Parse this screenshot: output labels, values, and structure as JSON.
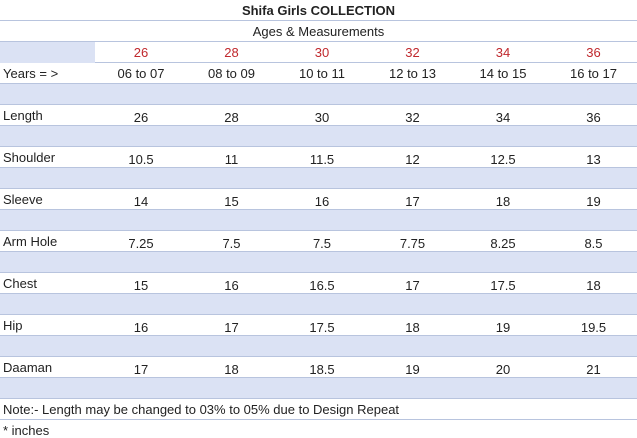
{
  "header": {
    "title": "Shifa Girls COLLECTION",
    "subtitle": "Ages & Measurements"
  },
  "table": {
    "sizes": [
      26,
      28,
      30,
      32,
      34,
      36
    ],
    "rows": [
      {
        "label": "Years = >",
        "cells": [
          "06 to 07",
          "08 to 09",
          "10 to 11",
          "12 to 13",
          "14 to 15",
          "16 to 17"
        ]
      },
      {
        "label": "Length",
        "cells": [
          26,
          28,
          30,
          32,
          34,
          36
        ]
      },
      {
        "label": "Shoulder",
        "cells": [
          10.5,
          11,
          11.5,
          12,
          12.5,
          13
        ]
      },
      {
        "label": "Sleeve",
        "cells": [
          14,
          15,
          16,
          17,
          18,
          19
        ]
      },
      {
        "label": "Arm Hole",
        "cells": [
          7.25,
          7.5,
          7.5,
          7.75,
          8.25,
          8.5
        ]
      },
      {
        "label": "Chest",
        "cells": [
          15,
          16,
          16.5,
          17,
          17.5,
          18
        ]
      },
      {
        "label": "Hip",
        "cells": [
          16,
          17,
          17.5,
          18,
          19,
          19.5
        ]
      },
      {
        "label": "Daaman",
        "cells": [
          17,
          18,
          18.5,
          19,
          20,
          21
        ]
      }
    ]
  },
  "footer": {
    "note": "Note:- Length may be changed to 03% to 05% due to Design Repeat",
    "unit": "* inches"
  }
}
